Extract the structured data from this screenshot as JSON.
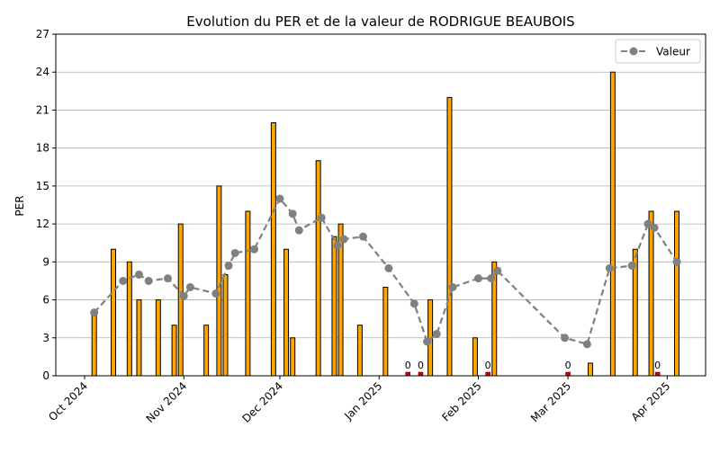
{
  "chart_data": {
    "type": "bar",
    "title": "Evolution du PER et de la valeur de RODRIGUE BEAUBOIS",
    "xlabel": "",
    "ylabel": "PER",
    "ylim": [
      0,
      27
    ],
    "yticks": [
      0,
      3,
      6,
      9,
      12,
      15,
      18,
      21,
      24,
      27
    ],
    "xlim": [
      "2024-09-22",
      "2025-04-13"
    ],
    "xticks": [
      {
        "date": "2024-10-01",
        "label": "Oct 2024"
      },
      {
        "date": "2024-11-01",
        "label": "Nov 2024"
      },
      {
        "date": "2024-12-01",
        "label": "Dec 2024"
      },
      {
        "date": "2025-01-01",
        "label": "Jan 2025"
      },
      {
        "date": "2025-02-01",
        "label": "Feb 2025"
      },
      {
        "date": "2025-03-01",
        "label": "Mar 2025"
      },
      {
        "date": "2025-04-01",
        "label": "Apr 2025"
      }
    ],
    "grid": "horizontal",
    "bar_color": "#FFA500",
    "zero_bar_color": "#CC0000",
    "bar_edge_color": "#000000",
    "bars": [
      {
        "date": "2024-10-04",
        "value": 5
      },
      {
        "date": "2024-10-10",
        "value": 10
      },
      {
        "date": "2024-10-15",
        "value": 9
      },
      {
        "date": "2024-10-18",
        "value": 6
      },
      {
        "date": "2024-10-24",
        "value": 6
      },
      {
        "date": "2024-10-29",
        "value": 4
      },
      {
        "date": "2024-10-31",
        "value": 12
      },
      {
        "date": "2024-11-08",
        "value": 4
      },
      {
        "date": "2024-11-12",
        "value": 15
      },
      {
        "date": "2024-11-14",
        "value": 8
      },
      {
        "date": "2024-11-21",
        "value": 13
      },
      {
        "date": "2024-11-29",
        "value": 20
      },
      {
        "date": "2024-12-03",
        "value": 10
      },
      {
        "date": "2024-12-05",
        "value": 3
      },
      {
        "date": "2024-12-13",
        "value": 17
      },
      {
        "date": "2024-12-18",
        "value": 11
      },
      {
        "date": "2024-12-20",
        "value": 12
      },
      {
        "date": "2024-12-26",
        "value": 4
      },
      {
        "date": "2025-01-03",
        "value": 7
      },
      {
        "date": "2025-01-10",
        "value": 0,
        "label": "0"
      },
      {
        "date": "2025-01-14",
        "value": 0,
        "label": "0"
      },
      {
        "date": "2025-01-17",
        "value": 6
      },
      {
        "date": "2025-01-23",
        "value": 22
      },
      {
        "date": "2025-01-31",
        "value": 3
      },
      {
        "date": "2025-02-04",
        "value": 0,
        "label": "0"
      },
      {
        "date": "2025-02-06",
        "value": 9
      },
      {
        "date": "2025-03-01",
        "value": 0,
        "label": "0"
      },
      {
        "date": "2025-03-08",
        "value": 1
      },
      {
        "date": "2025-03-15",
        "value": 24
      },
      {
        "date": "2025-03-22",
        "value": 10
      },
      {
        "date": "2025-03-27",
        "value": 13
      },
      {
        "date": "2025-03-29",
        "value": 0,
        "label": "0"
      },
      {
        "date": "2025-04-04",
        "value": 13
      }
    ],
    "series": [
      {
        "name": "Valeur",
        "type": "line",
        "style": "dashed",
        "marker": "circle",
        "color": "#808080",
        "points": [
          {
            "date": "2024-10-04",
            "value": 5.0
          },
          {
            "date": "2024-10-13",
            "value": 7.5
          },
          {
            "date": "2024-10-18",
            "value": 8.0
          },
          {
            "date": "2024-10-21",
            "value": 7.5
          },
          {
            "date": "2024-10-27",
            "value": 7.7
          },
          {
            "date": "2024-11-01",
            "value": 6.3
          },
          {
            "date": "2024-11-03",
            "value": 7.0
          },
          {
            "date": "2024-11-11",
            "value": 6.5
          },
          {
            "date": "2024-11-15",
            "value": 8.7
          },
          {
            "date": "2024-11-17",
            "value": 9.7
          },
          {
            "date": "2024-11-23",
            "value": 10.0
          },
          {
            "date": "2024-12-01",
            "value": 14.0
          },
          {
            "date": "2024-12-05",
            "value": 12.8
          },
          {
            "date": "2024-12-07",
            "value": 11.5
          },
          {
            "date": "2024-12-14",
            "value": 12.5
          },
          {
            "date": "2024-12-19",
            "value": 10.3
          },
          {
            "date": "2024-12-21",
            "value": 10.8
          },
          {
            "date": "2024-12-27",
            "value": 11.0
          },
          {
            "date": "2025-01-04",
            "value": 8.5
          },
          {
            "date": "2025-01-12",
            "value": 5.7
          },
          {
            "date": "2025-01-16",
            "value": 2.7
          },
          {
            "date": "2025-01-19",
            "value": 3.3
          },
          {
            "date": "2025-01-24",
            "value": 7.0
          },
          {
            "date": "2025-02-01",
            "value": 7.7
          },
          {
            "date": "2025-02-05",
            "value": 7.7
          },
          {
            "date": "2025-02-07",
            "value": 8.3
          },
          {
            "date": "2025-02-28",
            "value": 3.0
          },
          {
            "date": "2025-03-07",
            "value": 2.5
          },
          {
            "date": "2025-03-14",
            "value": 8.5
          },
          {
            "date": "2025-03-21",
            "value": 8.7
          },
          {
            "date": "2025-03-26",
            "value": 12.0
          },
          {
            "date": "2025-03-28",
            "value": 11.7
          },
          {
            "date": "2025-04-04",
            "value": 9.0
          }
        ]
      }
    ],
    "legend": {
      "position": "top-right",
      "entries": [
        "Valeur"
      ]
    }
  }
}
